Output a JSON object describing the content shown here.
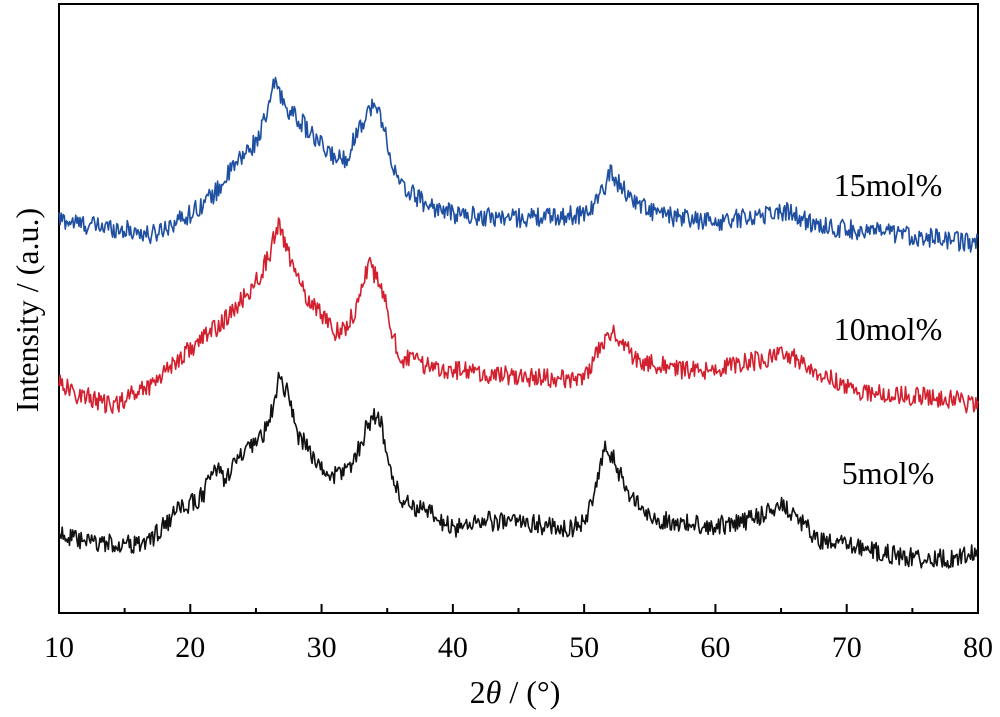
{
  "chart_data": {
    "type": "line",
    "title": "",
    "xlabel_prefix": "2",
    "xlabel_symbol": "θ",
    "xlabel_suffix": " / (°)",
    "ylabel": "Intensity / (a.u.)",
    "xlim": [
      10,
      80
    ],
    "x_ticks": [
      10,
      20,
      30,
      40,
      50,
      60,
      70,
      80
    ],
    "y_ticks_shown": false,
    "grid": false,
    "legend": "inline labels at right of each curve",
    "series": [
      {
        "name": "15mol%",
        "color": "#1f4fa0",
        "offset": 2.1,
        "points": [
          [
            10,
            0.26
          ],
          [
            12,
            0.22
          ],
          [
            14,
            0.2
          ],
          [
            16,
            0.17
          ],
          [
            17,
            0.14
          ],
          [
            18,
            0.2
          ],
          [
            20,
            0.3
          ],
          [
            21,
            0.38
          ],
          [
            22,
            0.46
          ],
          [
            23,
            0.6
          ],
          [
            24,
            0.72
          ],
          [
            25,
            0.82
          ],
          [
            25.8,
            1.0
          ],
          [
            26.5,
            1.28
          ],
          [
            27,
            1.12
          ],
          [
            27.8,
            1.02
          ],
          [
            28.5,
            0.96
          ],
          [
            29.5,
            0.84
          ],
          [
            30.5,
            0.74
          ],
          [
            31.5,
            0.69
          ],
          [
            32,
            0.72
          ],
          [
            32.8,
            0.92
          ],
          [
            33.8,
            1.08
          ],
          [
            34.5,
            1.02
          ],
          [
            35,
            0.82
          ],
          [
            35.5,
            0.62
          ],
          [
            36,
            0.5
          ],
          [
            37,
            0.44
          ],
          [
            38,
            0.37
          ],
          [
            39,
            0.33
          ],
          [
            40,
            0.3
          ],
          [
            42,
            0.28
          ],
          [
            45,
            0.27
          ],
          [
            48,
            0.28
          ],
          [
            50,
            0.3
          ],
          [
            51.2,
            0.42
          ],
          [
            52,
            0.6
          ],
          [
            52.8,
            0.5
          ],
          [
            53.5,
            0.42
          ],
          [
            55,
            0.32
          ],
          [
            57,
            0.27
          ],
          [
            60,
            0.24
          ],
          [
            62,
            0.27
          ],
          [
            64,
            0.3
          ],
          [
            65.5,
            0.32
          ],
          [
            67,
            0.24
          ],
          [
            69,
            0.2
          ],
          [
            72,
            0.17
          ],
          [
            75,
            0.14
          ],
          [
            78,
            0.11
          ],
          [
            80,
            0.08
          ]
        ]
      },
      {
        "name": "10mol%",
        "color": "#d3202f",
        "offset": 1.0,
        "points": [
          [
            10,
            0.2
          ],
          [
            11,
            0.1
          ],
          [
            12,
            0.08
          ],
          [
            13,
            0.04
          ],
          [
            14,
            0.0
          ],
          [
            15,
            0.06
          ],
          [
            16,
            0.12
          ],
          [
            17,
            0.16
          ],
          [
            18,
            0.26
          ],
          [
            19,
            0.34
          ],
          [
            20,
            0.42
          ],
          [
            21,
            0.5
          ],
          [
            22,
            0.58
          ],
          [
            23,
            0.66
          ],
          [
            24,
            0.78
          ],
          [
            25,
            0.9
          ],
          [
            26,
            1.1
          ],
          [
            26.7,
            1.32
          ],
          [
            27.2,
            1.2
          ],
          [
            28,
            0.95
          ],
          [
            29,
            0.78
          ],
          [
            30,
            0.68
          ],
          [
            31,
            0.55
          ],
          [
            32,
            0.58
          ],
          [
            33,
            0.82
          ],
          [
            33.6,
            1.06
          ],
          [
            34.2,
            0.92
          ],
          [
            35,
            0.72
          ],
          [
            35.5,
            0.5
          ],
          [
            36,
            0.35
          ],
          [
            37,
            0.34
          ],
          [
            38,
            0.3
          ],
          [
            40,
            0.27
          ],
          [
            42,
            0.24
          ],
          [
            45,
            0.22
          ],
          [
            48,
            0.2
          ],
          [
            50,
            0.22
          ],
          [
            51,
            0.38
          ],
          [
            52,
            0.55
          ],
          [
            53,
            0.45
          ],
          [
            54,
            0.34
          ],
          [
            56,
            0.3
          ],
          [
            58,
            0.26
          ],
          [
            60,
            0.27
          ],
          [
            62,
            0.32
          ],
          [
            64,
            0.35
          ],
          [
            65,
            0.38
          ],
          [
            66.5,
            0.34
          ],
          [
            68,
            0.24
          ],
          [
            70,
            0.14
          ],
          [
            72,
            0.1
          ],
          [
            75,
            0.08
          ],
          [
            78,
            0.06
          ],
          [
            80,
            0.0
          ]
        ]
      },
      {
        "name": "5mol%",
        "color": "#111111",
        "offset": 0.0,
        "points": [
          [
            10,
            0.1
          ],
          [
            11,
            0.04
          ],
          [
            12,
            0.02
          ],
          [
            14,
            0.01
          ],
          [
            16,
            0.0
          ],
          [
            17,
            0.04
          ],
          [
            18,
            0.14
          ],
          [
            19,
            0.24
          ],
          [
            20,
            0.3
          ],
          [
            21,
            0.36
          ],
          [
            21.8,
            0.58
          ],
          [
            22.5,
            0.48
          ],
          [
            23,
            0.54
          ],
          [
            24,
            0.66
          ],
          [
            25,
            0.72
          ],
          [
            26,
            0.88
          ],
          [
            26.8,
            1.22
          ],
          [
            27.5,
            1.08
          ],
          [
            28.2,
            0.8
          ],
          [
            29,
            0.7
          ],
          [
            30,
            0.54
          ],
          [
            31,
            0.5
          ],
          [
            32,
            0.56
          ],
          [
            32.5,
            0.62
          ],
          [
            33.4,
            0.84
          ],
          [
            34,
            0.96
          ],
          [
            34.6,
            0.86
          ],
          [
            35,
            0.64
          ],
          [
            35.5,
            0.46
          ],
          [
            36,
            0.34
          ],
          [
            37,
            0.28
          ],
          [
            38,
            0.24
          ],
          [
            40,
            0.12
          ],
          [
            42,
            0.18
          ],
          [
            44,
            0.16
          ],
          [
            45,
            0.18
          ],
          [
            47,
            0.14
          ],
          [
            49,
            0.12
          ],
          [
            50,
            0.16
          ],
          [
            51,
            0.44
          ],
          [
            51.6,
            0.7
          ],
          [
            52.3,
            0.62
          ],
          [
            53,
            0.44
          ],
          [
            54,
            0.3
          ],
          [
            55,
            0.2
          ],
          [
            57,
            0.16
          ],
          [
            60,
            0.14
          ],
          [
            62,
            0.16
          ],
          [
            64,
            0.24
          ],
          [
            65,
            0.3
          ],
          [
            66,
            0.22
          ],
          [
            67,
            0.12
          ],
          [
            68,
            0.02
          ],
          [
            70,
            0.0
          ],
          [
            72,
            -0.04
          ],
          [
            74,
            -0.08
          ],
          [
            76,
            -0.1
          ],
          [
            78,
            -0.1
          ],
          [
            80,
            -0.06
          ]
        ]
      }
    ]
  }
}
